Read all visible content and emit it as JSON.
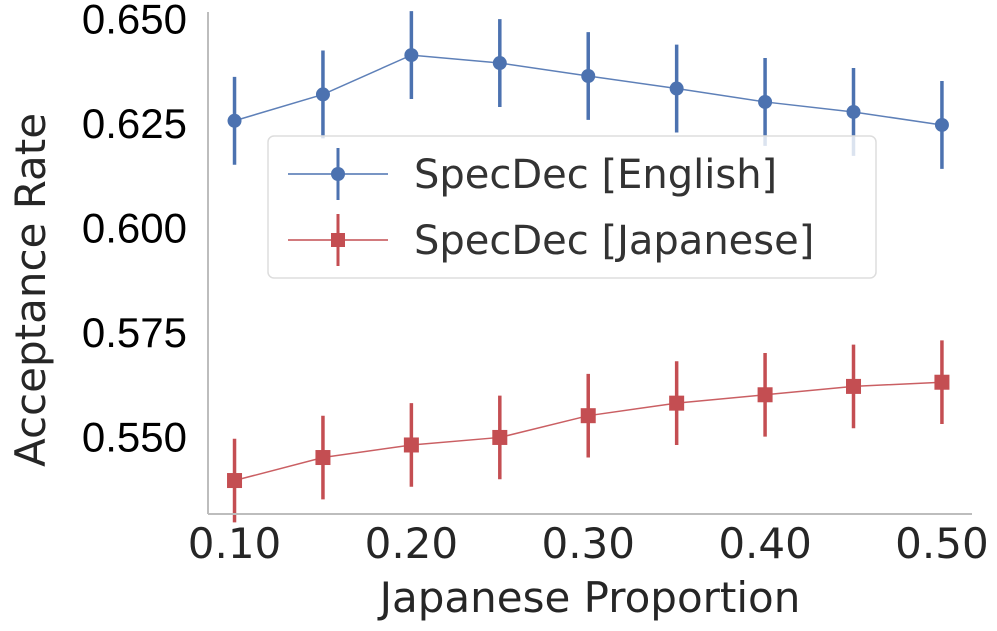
{
  "chart_data": {
    "type": "line",
    "title": "",
    "xlabel": "Japanese Proportion",
    "ylabel": "Acceptance Rate",
    "x": [
      0.1,
      0.15,
      0.2,
      0.25,
      0.3,
      0.35,
      0.4,
      0.45,
      0.5
    ],
    "xticks": [
      "0.10",
      "0.20",
      "0.30",
      "0.40",
      "0.50"
    ],
    "xtick_values": [
      0.1,
      0.2,
      0.3,
      0.4,
      0.5
    ],
    "yticks": [
      "0.650",
      "0.625",
      "0.600",
      "0.575",
      "0.550"
    ],
    "ytick_values": [
      0.65,
      0.625,
      0.6,
      0.575,
      0.55
    ],
    "xlim": [
      0.085,
      0.517
    ],
    "ylim": [
      0.5315,
      0.6515
    ],
    "grid": false,
    "legend_position": "center",
    "series": [
      {
        "name": "SpecDec [English]",
        "color": "#4c72b0",
        "marker": "circle",
        "values": [
          0.6255,
          0.6318,
          0.6412,
          0.6393,
          0.6362,
          0.6332,
          0.63,
          0.6276,
          0.6245
        ],
        "err": [
          0.0105,
          0.0105,
          0.0105,
          0.0105,
          0.0105,
          0.0105,
          0.0105,
          0.0105,
          0.0105
        ]
      },
      {
        "name": "SpecDec [Japanese]",
        "color": "#c44e52",
        "marker": "square",
        "values": [
          0.5395,
          0.545,
          0.548,
          0.5498,
          0.555,
          0.558,
          0.56,
          0.562,
          0.563
        ],
        "err": [
          0.01,
          0.01,
          0.01,
          0.01,
          0.01,
          0.01,
          0.01,
          0.01,
          0.01
        ]
      }
    ]
  }
}
